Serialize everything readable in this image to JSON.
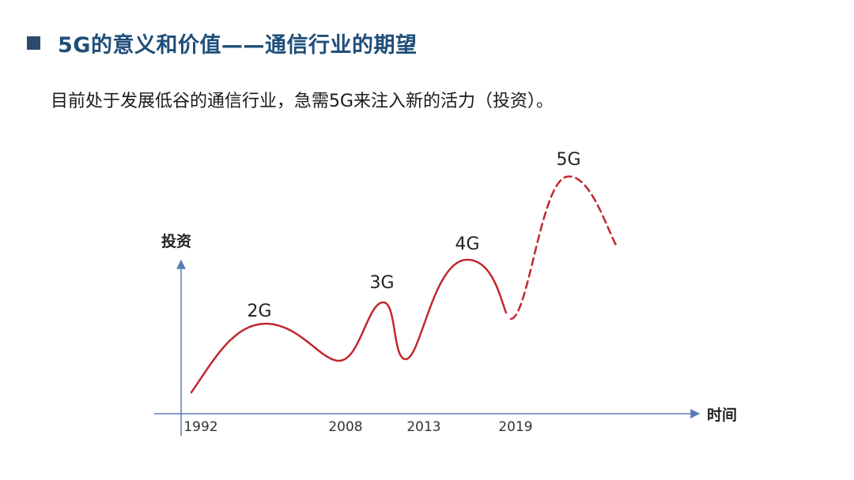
{
  "slide": {
    "title": "5G的意义和价值——通信行业的期望",
    "subtitle": "目前处于发展低谷的通信行业，急需5G来注入新的活力（投资）。",
    "colors": {
      "title": "#1f4e79",
      "bullet": "#2e4a6b",
      "curve": "#c0282d",
      "axis": "#5b7db5"
    }
  },
  "chart_data": {
    "type": "line",
    "xlabel": "时间",
    "ylabel": "投资",
    "x_ticks": [
      "1992",
      "2008",
      "2013",
      "2019"
    ],
    "generations": [
      {
        "label": "2G",
        "year": 1996,
        "relative_investment": 0.47,
        "style": "solid"
      },
      {
        "label": "3G",
        "year": 2011,
        "relative_investment": 0.59,
        "style": "solid"
      },
      {
        "label": "4G",
        "year": 2016,
        "relative_investment": 0.74,
        "style": "solid"
      },
      {
        "label": "5G",
        "year": 2023,
        "relative_investment": 1.0,
        "style": "dashed"
      }
    ],
    "grid": false,
    "legend": "none"
  }
}
